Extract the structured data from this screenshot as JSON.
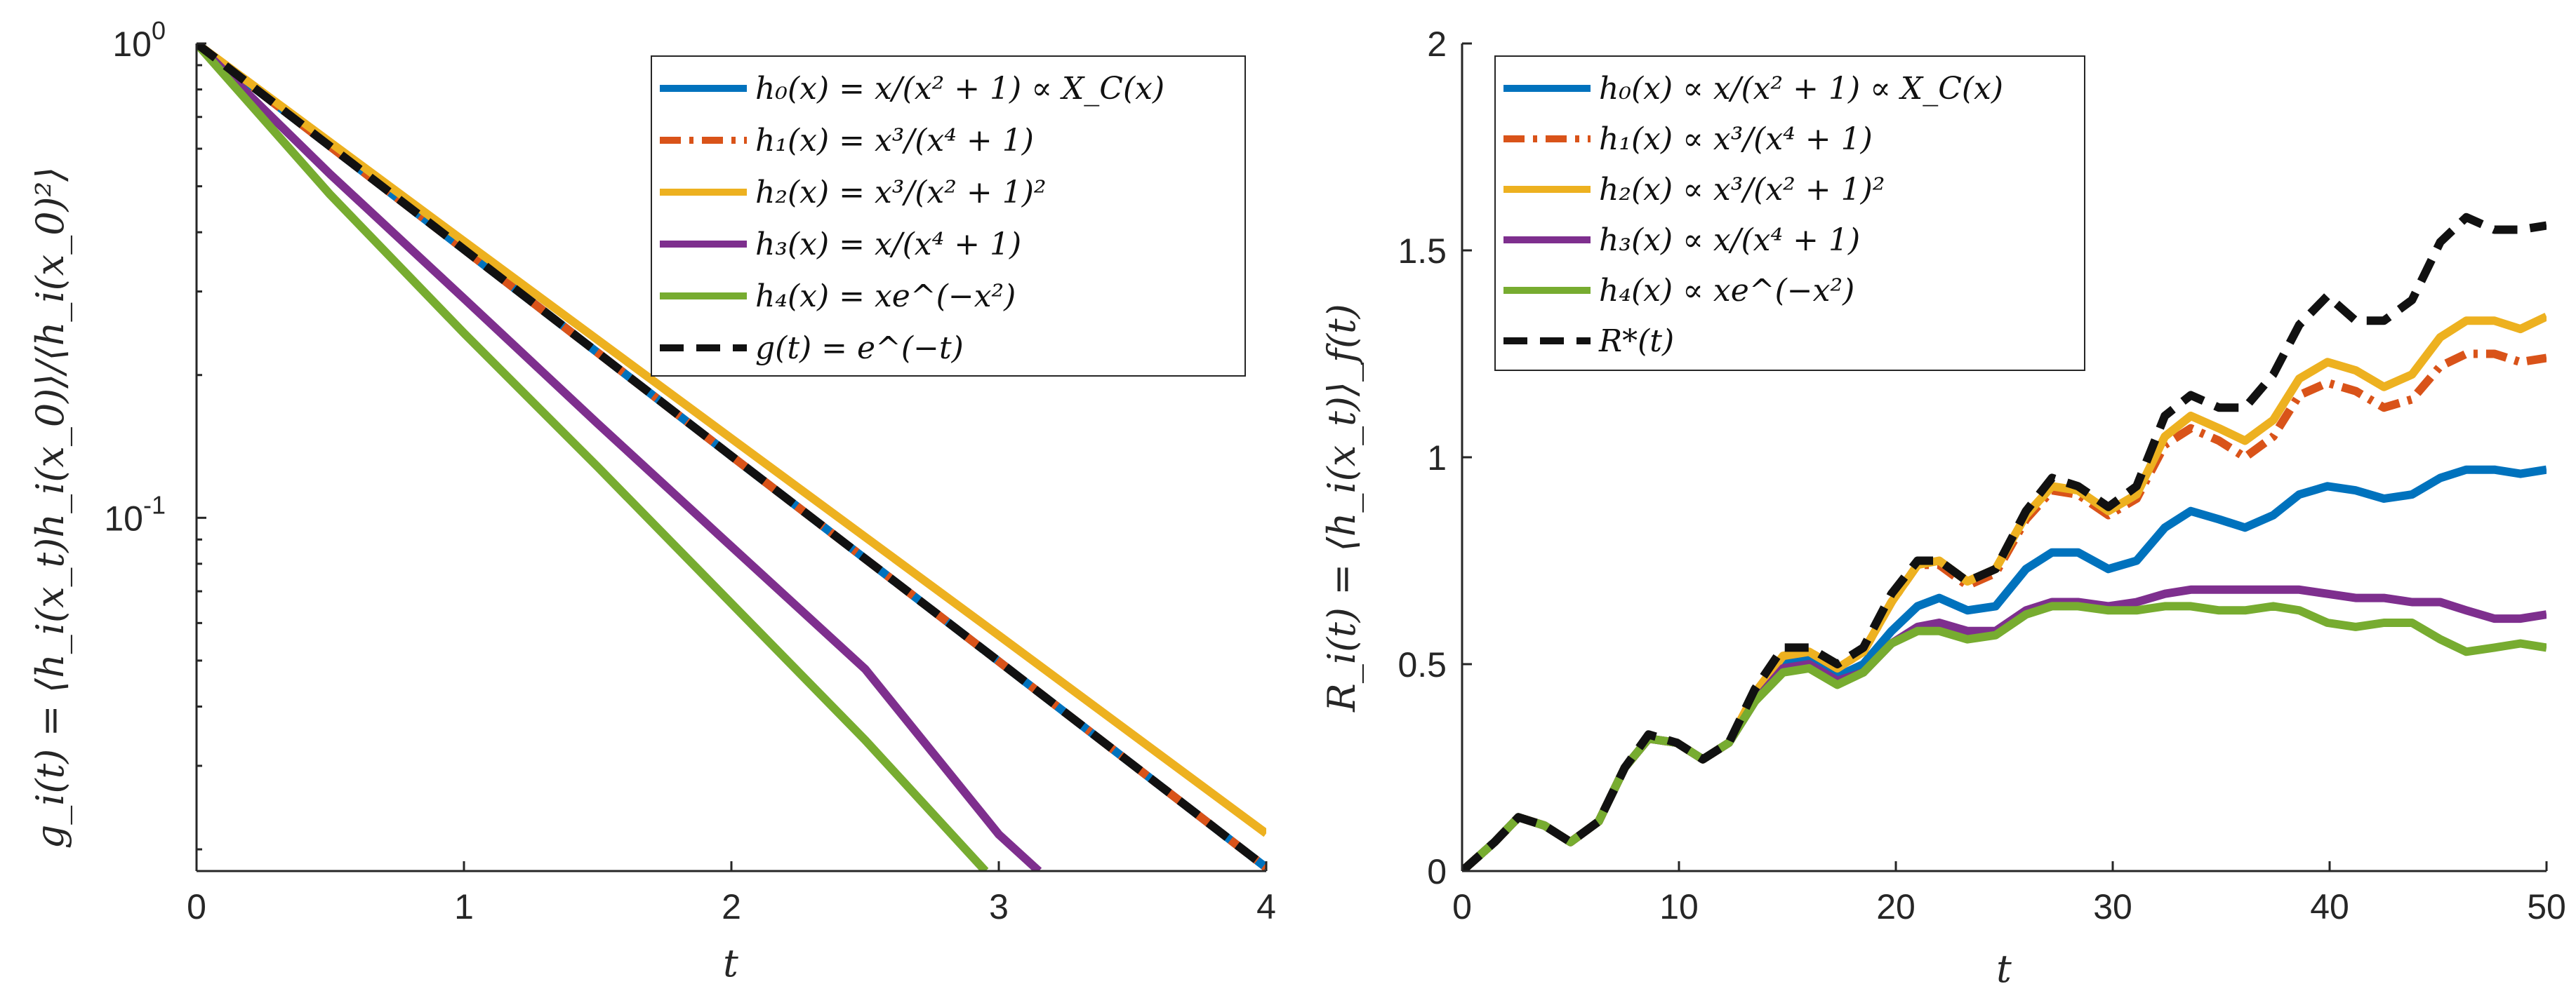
{
  "chart_data": [
    {
      "type": "line",
      "scale": "semilogy",
      "xlabel": "t",
      "ylabel": "g_i(t) = ⟨h_i(x_t)h_i(x_0)⟩/⟨h_i(x_0)²⟩",
      "xlim": [
        0,
        4
      ],
      "ylim": [
        0.018,
        1
      ],
      "xticks": [
        0,
        1,
        2,
        3,
        4
      ],
      "xtick_labels": [
        "0",
        "1",
        "2",
        "3",
        "4"
      ],
      "ytick_labels": [
        {
          "base": "10",
          "exp": "0",
          "value": 1
        },
        {
          "base": "10",
          "exp": "-1",
          "value": 0.1
        }
      ],
      "legend_position": "top-right",
      "series": [
        {
          "name": "h₀(x) = x/(x² + 1) ∝ X_C(x)",
          "color": "#0072BD",
          "dash": "solid",
          "x": [
            0,
            1,
            2,
            3,
            4
          ],
          "y": [
            1,
            0.368,
            0.135,
            0.0498,
            0.0183
          ]
        },
        {
          "name": "h₁(x) = x³/(x⁴ + 1)",
          "color": "#D95319",
          "dash": "dashdot",
          "x": [
            0,
            1,
            2,
            3,
            4
          ],
          "y": [
            1,
            0.368,
            0.135,
            0.0498,
            0.0183
          ]
        },
        {
          "name": "h₂(x) = x³/(x² + 1)²",
          "color": "#EDB120",
          "dash": "solid",
          "x": [
            0,
            1,
            2,
            3,
            4
          ],
          "y": [
            1,
            0.383,
            0.147,
            0.0565,
            0.0216
          ]
        },
        {
          "name": "h₃(x) = x/(x⁴ + 1)",
          "color": "#7E2F8E",
          "dash": "solid",
          "x": [
            0,
            0.5,
            1,
            1.5,
            2,
            2.5,
            3,
            3.15
          ],
          "y": [
            1,
            0.53,
            0.29,
            0.158,
            0.087,
            0.048,
            0.0215,
            0.018
          ]
        },
        {
          "name": "h₄(x) = xe^(−x²)",
          "color": "#77AC30",
          "dash": "solid",
          "x": [
            0,
            0.5,
            1,
            1.5,
            2,
            2.5,
            2.95
          ],
          "y": [
            1,
            0.48,
            0.245,
            0.128,
            0.066,
            0.034,
            0.018
          ]
        },
        {
          "name": "g(t) = e^(−t)",
          "color": "#111111",
          "dash": "dashed",
          "x": [
            0,
            1,
            2,
            3,
            4
          ],
          "y": [
            1,
            0.368,
            0.135,
            0.0498,
            0.0183
          ]
        }
      ]
    },
    {
      "type": "line",
      "scale": "linear",
      "xlabel": "t",
      "ylabel": "R_i(t) = ⟨h_i(x_t)⟩_f(t)",
      "xlim": [
        0,
        50
      ],
      "ylim": [
        0,
        2
      ],
      "xticks": [
        0,
        10,
        20,
        30,
        40,
        50
      ],
      "xtick_labels": [
        "0",
        "10",
        "20",
        "30",
        "40",
        "50"
      ],
      "yticks": [
        0,
        0.5,
        1,
        1.5,
        2
      ],
      "ytick_labels": [
        "0",
        "0.5",
        "1",
        "1.5",
        "2"
      ],
      "legend_position": "top-left",
      "series": [
        {
          "name": "h₀(x) ∝ x/(x² + 1) ∝ X_C(x)",
          "color": "#0072BD",
          "dash": "solid",
          "x": [
            0,
            1.5,
            2.6,
            3.8,
            5,
            6.3,
            7.5,
            8.6,
            9.9,
            11.1,
            12.3,
            13.5,
            14.8,
            16,
            17.3,
            18.5,
            19.8,
            21,
            22,
            23.3,
            24.6,
            26,
            27.2,
            28.4,
            29.8,
            31.1,
            32.4,
            33.6,
            34.9,
            36.1,
            37.4,
            38.6,
            39.9,
            41.2,
            42.5,
            43.8,
            45.1,
            46.3,
            47.6,
            48.8,
            50
          ],
          "y": [
            0,
            0.07,
            0.13,
            0.11,
            0.07,
            0.12,
            0.25,
            0.32,
            0.31,
            0.27,
            0.31,
            0.42,
            0.5,
            0.51,
            0.47,
            0.5,
            0.58,
            0.64,
            0.66,
            0.63,
            0.64,
            0.73,
            0.77,
            0.77,
            0.73,
            0.75,
            0.83,
            0.87,
            0.85,
            0.83,
            0.86,
            0.91,
            0.93,
            0.92,
            0.9,
            0.91,
            0.95,
            0.97,
            0.97,
            0.96,
            0.97
          ]
        },
        {
          "name": "h₁(x) ∝ x³/(x⁴ + 1)",
          "color": "#D95319",
          "dash": "dashdot",
          "x": [
            0,
            1.5,
            2.6,
            3.8,
            5,
            6.3,
            7.5,
            8.6,
            9.9,
            11.1,
            12.3,
            13.5,
            14.8,
            16,
            17.3,
            18.5,
            19.8,
            21,
            22,
            23.3,
            24.6,
            26,
            27.2,
            28.4,
            29.8,
            31.1,
            32.4,
            33.6,
            34.9,
            36.1,
            37.4,
            38.6,
            39.9,
            41.2,
            42.5,
            43.8,
            45.1,
            46.3,
            47.6,
            48.8,
            50
          ],
          "y": [
            0,
            0.07,
            0.13,
            0.11,
            0.07,
            0.12,
            0.25,
            0.32,
            0.31,
            0.27,
            0.31,
            0.43,
            0.52,
            0.53,
            0.49,
            0.53,
            0.65,
            0.74,
            0.74,
            0.69,
            0.72,
            0.85,
            0.92,
            0.91,
            0.86,
            0.9,
            1.03,
            1.07,
            1.04,
            1.0,
            1.05,
            1.15,
            1.18,
            1.16,
            1.12,
            1.14,
            1.22,
            1.25,
            1.25,
            1.23,
            1.24
          ]
        },
        {
          "name": "h₂(x) ∝ x³/(x² + 1)²",
          "color": "#EDB120",
          "dash": "solid",
          "x": [
            0,
            1.5,
            2.6,
            3.8,
            5,
            6.3,
            7.5,
            8.6,
            9.9,
            11.1,
            12.3,
            13.5,
            14.8,
            16,
            17.3,
            18.5,
            19.8,
            21,
            22,
            23.3,
            24.6,
            26,
            27.2,
            28.4,
            29.8,
            31.1,
            32.4,
            33.6,
            34.9,
            36.1,
            37.4,
            38.6,
            39.9,
            41.2,
            42.5,
            43.8,
            45.1,
            46.3,
            47.6,
            48.8,
            50
          ],
          "y": [
            0,
            0.07,
            0.13,
            0.11,
            0.07,
            0.12,
            0.25,
            0.32,
            0.31,
            0.27,
            0.31,
            0.43,
            0.52,
            0.53,
            0.49,
            0.53,
            0.65,
            0.74,
            0.75,
            0.7,
            0.73,
            0.86,
            0.93,
            0.92,
            0.87,
            0.91,
            1.05,
            1.1,
            1.07,
            1.04,
            1.09,
            1.19,
            1.23,
            1.21,
            1.17,
            1.2,
            1.29,
            1.33,
            1.33,
            1.31,
            1.34
          ]
        },
        {
          "name": "h₃(x) ∝ x/(x⁴ + 1)",
          "color": "#7E2F8E",
          "dash": "solid",
          "x": [
            0,
            1.5,
            2.6,
            3.8,
            5,
            6.3,
            7.5,
            8.6,
            9.9,
            11.1,
            12.3,
            13.5,
            14.8,
            16,
            17.3,
            18.5,
            19.8,
            21,
            22,
            23.3,
            24.6,
            26,
            27.2,
            28.4,
            29.8,
            31.1,
            32.4,
            33.6,
            34.9,
            36.1,
            37.4,
            38.6,
            39.9,
            41.2,
            42.5,
            43.8,
            45.1,
            46.3,
            47.6,
            48.8,
            50
          ],
          "y": [
            0,
            0.07,
            0.13,
            0.11,
            0.07,
            0.12,
            0.25,
            0.32,
            0.31,
            0.27,
            0.31,
            0.41,
            0.49,
            0.5,
            0.46,
            0.48,
            0.55,
            0.59,
            0.6,
            0.58,
            0.58,
            0.63,
            0.65,
            0.65,
            0.64,
            0.65,
            0.67,
            0.68,
            0.68,
            0.68,
            0.68,
            0.68,
            0.67,
            0.66,
            0.66,
            0.65,
            0.65,
            0.63,
            0.61,
            0.61,
            0.62
          ]
        },
        {
          "name": "h₄(x) ∝ xe^(−x²)",
          "color": "#77AC30",
          "dash": "solid",
          "x": [
            0,
            1.5,
            2.6,
            3.8,
            5,
            6.3,
            7.5,
            8.6,
            9.9,
            11.1,
            12.3,
            13.5,
            14.8,
            16,
            17.3,
            18.5,
            19.8,
            21,
            22,
            23.3,
            24.6,
            26,
            27.2,
            28.4,
            29.8,
            31.1,
            32.4,
            33.6,
            34.9,
            36.1,
            37.4,
            38.6,
            39.9,
            41.2,
            42.5,
            43.8,
            45.1,
            46.3,
            47.6,
            48.8,
            50
          ],
          "y": [
            0,
            0.07,
            0.13,
            0.11,
            0.07,
            0.12,
            0.25,
            0.32,
            0.31,
            0.27,
            0.31,
            0.41,
            0.48,
            0.49,
            0.45,
            0.48,
            0.55,
            0.58,
            0.58,
            0.56,
            0.57,
            0.62,
            0.64,
            0.64,
            0.63,
            0.63,
            0.64,
            0.64,
            0.63,
            0.63,
            0.64,
            0.63,
            0.6,
            0.59,
            0.6,
            0.6,
            0.56,
            0.53,
            0.54,
            0.55,
            0.54
          ]
        },
        {
          "name": "R*(t)",
          "color": "#111111",
          "dash": "dashed",
          "x": [
            0,
            1.5,
            2.6,
            3.8,
            5,
            6.3,
            7.5,
            8.6,
            9.9,
            11.1,
            12.3,
            13.5,
            14.8,
            16,
            17.3,
            18.5,
            19.8,
            21,
            22,
            23.3,
            24.6,
            26,
            27.2,
            28.4,
            29.8,
            31.1,
            32.4,
            33.6,
            34.9,
            36.1,
            37.4,
            38.6,
            39.9,
            41.2,
            42.5,
            43.8,
            45.1,
            46.3,
            47.6,
            48.8,
            50
          ],
          "y": [
            0,
            0.07,
            0.13,
            0.11,
            0.07,
            0.12,
            0.25,
            0.33,
            0.31,
            0.27,
            0.31,
            0.44,
            0.54,
            0.54,
            0.5,
            0.54,
            0.67,
            0.75,
            0.75,
            0.7,
            0.73,
            0.87,
            0.95,
            0.93,
            0.88,
            0.93,
            1.1,
            1.15,
            1.12,
            1.12,
            1.2,
            1.32,
            1.39,
            1.33,
            1.33,
            1.38,
            1.52,
            1.58,
            1.55,
            1.55,
            1.56
          ]
        }
      ]
    }
  ]
}
